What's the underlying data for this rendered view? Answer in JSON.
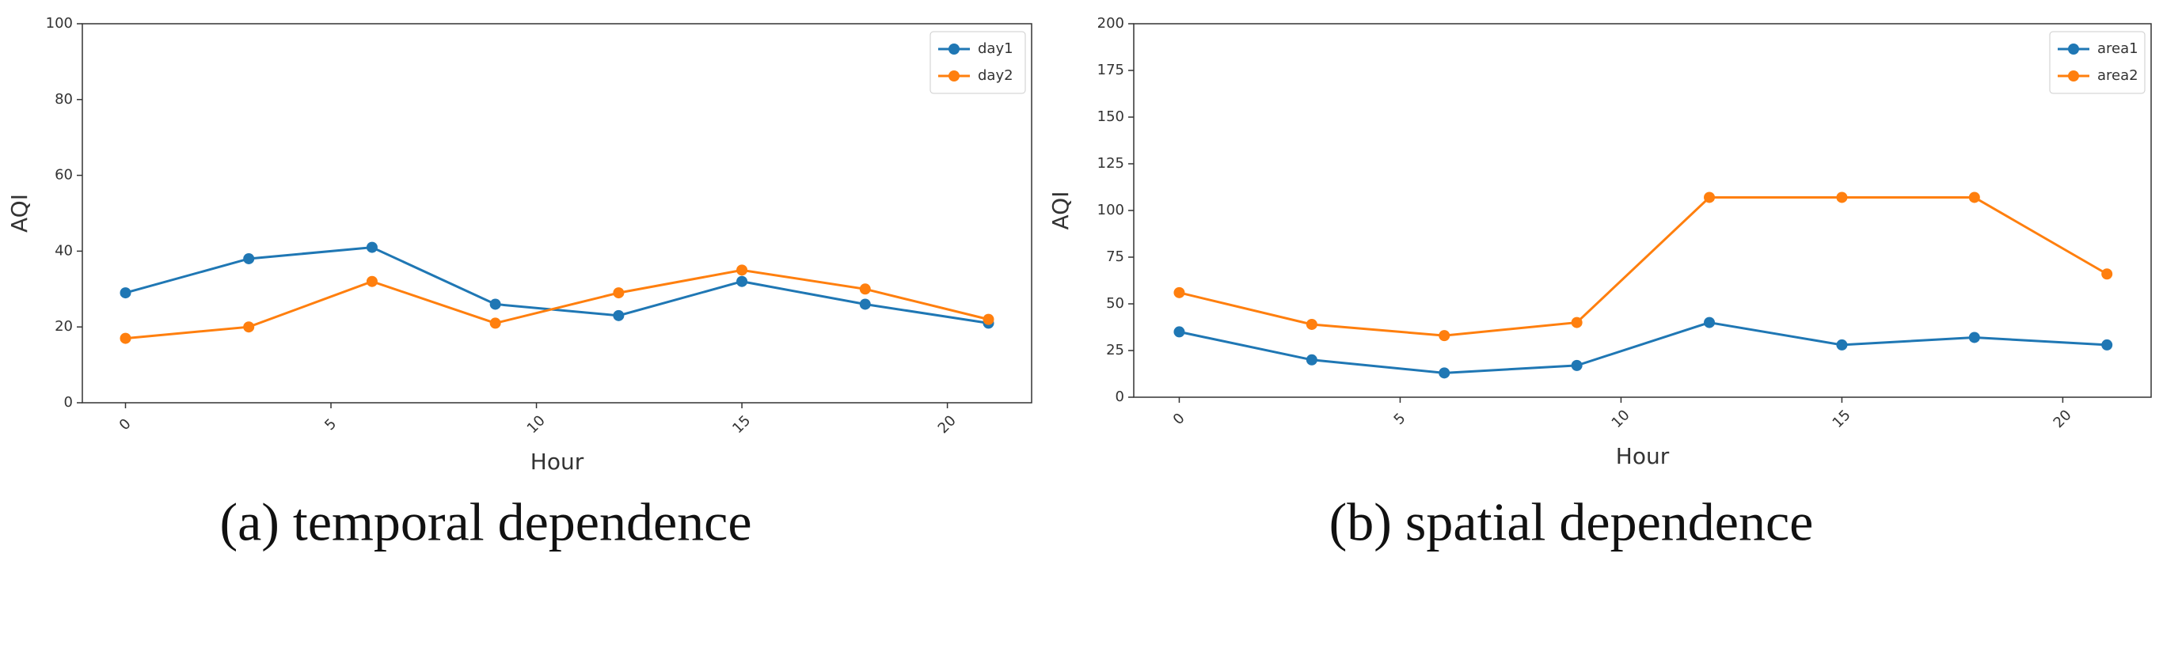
{
  "chart_data": [
    {
      "type": "line",
      "caption": "(a) temporal dependence",
      "xlabel": "Hour",
      "ylabel": "AQI",
      "x": [
        0,
        3,
        6,
        9,
        12,
        15,
        18,
        21
      ],
      "series": [
        {
          "name": "day1",
          "color": "#1f77b4",
          "values": [
            29,
            38,
            41,
            26,
            23,
            32,
            26,
            21
          ]
        },
        {
          "name": "day2",
          "color": "#ff7f0e",
          "values": [
            17,
            20,
            32,
            21,
            29,
            35,
            30,
            22
          ]
        }
      ],
      "xlim": [
        -1.05,
        22.05
      ],
      "xticks": [
        0,
        5,
        10,
        15,
        20
      ],
      "ylim": [
        0,
        100
      ],
      "yticks": [
        0,
        20,
        40,
        60,
        80,
        100
      ],
      "legend": "upper right"
    },
    {
      "type": "line",
      "caption": "(b) spatial dependence",
      "xlabel": "Hour",
      "ylabel": "AQI",
      "x": [
        0,
        3,
        6,
        9,
        12,
        15,
        18,
        21
      ],
      "series": [
        {
          "name": "area1",
          "color": "#1f77b4",
          "values": [
            35,
            20,
            13,
            17,
            40,
            28,
            32,
            28
          ]
        },
        {
          "name": "area2",
          "color": "#ff7f0e",
          "values": [
            56,
            39,
            33,
            40,
            107,
            107,
            107,
            66
          ]
        }
      ],
      "xlim": [
        -1.03,
        22.0
      ],
      "xticks": [
        0,
        5,
        10,
        15,
        20
      ],
      "ylim": [
        0,
        200
      ],
      "yticks": [
        0,
        25,
        50,
        75,
        100,
        125,
        150,
        175,
        200
      ],
      "legend": "upper right"
    }
  ]
}
